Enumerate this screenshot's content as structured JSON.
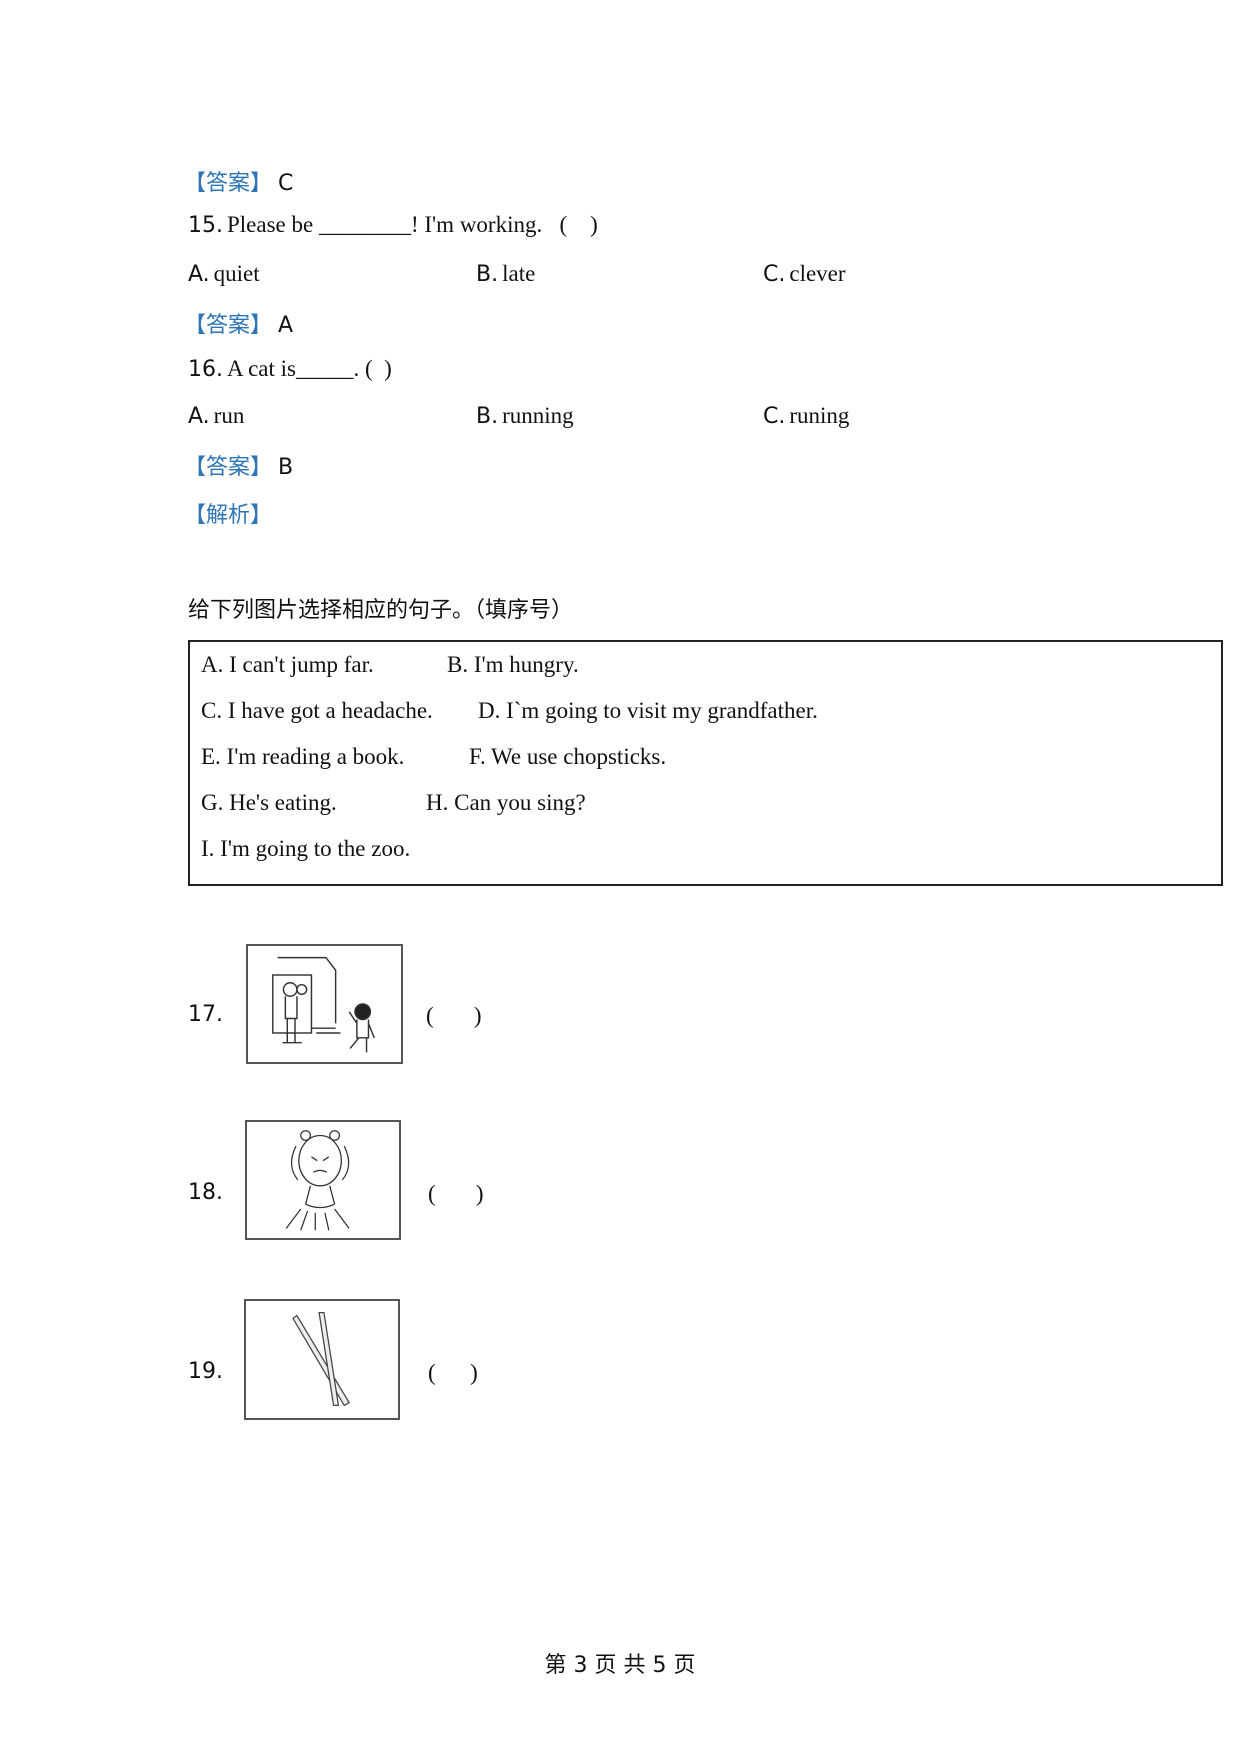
{
  "answers": {
    "q14": {
      "label": "【答案】",
      "value": "C"
    },
    "q15": {
      "label": "【答案】",
      "value": "A"
    },
    "q16": {
      "label": "【答案】",
      "value": "B"
    },
    "q16_analysis": {
      "label": "【解析】"
    }
  },
  "q15": {
    "number": "15.",
    "text": "Please be ________! I'm working.   (    )",
    "options": [
      {
        "key": "A.",
        "text": "quiet"
      },
      {
        "key": "B.",
        "text": "late"
      },
      {
        "key": "C.",
        "text": "clever"
      }
    ]
  },
  "q16": {
    "number": "16.",
    "text": "A cat is_____. (  )",
    "options": [
      {
        "key": "A.",
        "text": "run"
      },
      {
        "key": "B.",
        "text": "running"
      },
      {
        "key": "C.",
        "text": "runing"
      }
    ]
  },
  "section": {
    "instruction": "给下列图片选择相应的句子。（填序号）",
    "choices": [
      [
        "A. I can't jump far.",
        "B. I'm hungry."
      ],
      [
        "C. I have got a headache.",
        "D. I`m going to visit my grandfather."
      ],
      [
        "E. I'm reading a book.",
        "F. We use chopsticks."
      ],
      [
        "G. He's eating.",
        "H. Can you sing?"
      ],
      [
        "I. I'm going to the zoo."
      ]
    ]
  },
  "pictures": [
    {
      "number": "17.",
      "blank": "(       )",
      "image": "grandfather-at-door-with-boy"
    },
    {
      "number": "18.",
      "blank": "(       )",
      "image": "girl-holding-head"
    },
    {
      "number": "19.",
      "blank": "(      )",
      "image": "chopsticks"
    }
  ],
  "footer": {
    "page": "第 3 页 共 5 页"
  },
  "colors": {
    "answer_label": "#2e75b6"
  }
}
